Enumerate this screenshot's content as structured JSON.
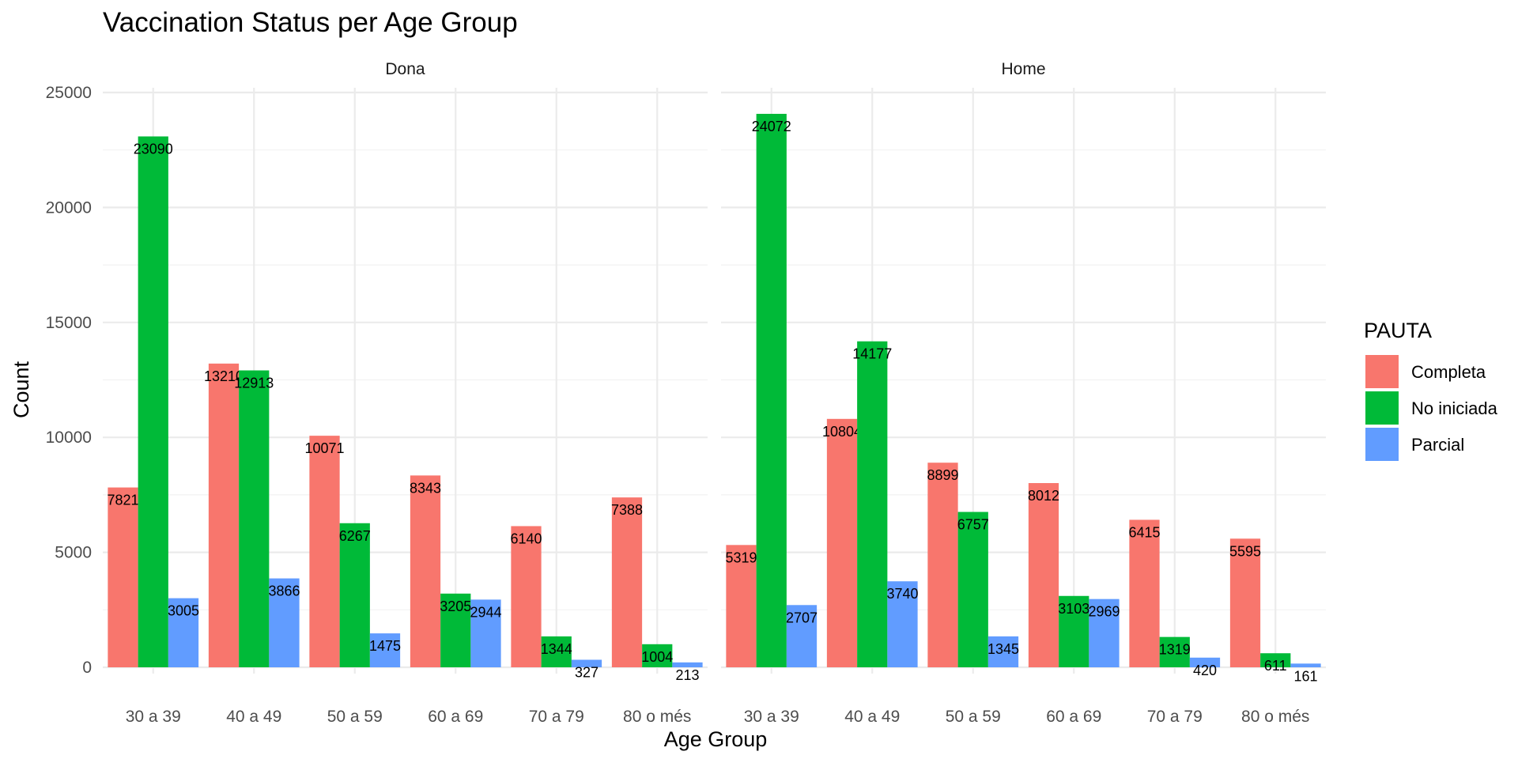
{
  "chart_data": {
    "type": "bar",
    "title": "Vaccination Status per Age Group",
    "xlabel": "Age Group",
    "ylabel": "Count",
    "ylim": [
      0,
      25000
    ],
    "yticks": [
      0,
      5000,
      10000,
      15000,
      20000,
      25000
    ],
    "grid": true,
    "legend": {
      "title": "PAUTA",
      "placement": "right"
    },
    "categories": [
      "30 a 39",
      "40 a 49",
      "50 a 59",
      "60 a 69",
      "70 a 79",
      "80 o més"
    ],
    "series_styles": [
      {
        "name": "Completa",
        "color": "#F8766D"
      },
      {
        "name": "No iniciada",
        "color": "#00BA38"
      },
      {
        "name": "Parcial",
        "color": "#619CFF"
      }
    ],
    "panels": [
      {
        "label": "Dona",
        "series": [
          {
            "name": "Completa",
            "values": [
              7821,
              13210,
              10071,
              8343,
              6140,
              7388
            ]
          },
          {
            "name": "No iniciada",
            "values": [
              23090,
              12913,
              6267,
              3205,
              1344,
              1004
            ]
          },
          {
            "name": "Parcial",
            "values": [
              3005,
              3866,
              1475,
              2944,
              327,
              213
            ]
          }
        ]
      },
      {
        "label": "Home",
        "series": [
          {
            "name": "Completa",
            "values": [
              5319,
              10804,
              8899,
              8012,
              6415,
              5595
            ]
          },
          {
            "name": "No iniciada",
            "values": [
              24072,
              14177,
              6757,
              3103,
              1319,
              611
            ]
          },
          {
            "name": "Parcial",
            "values": [
              2707,
              3740,
              1345,
              2969,
              420,
              161
            ]
          }
        ]
      }
    ]
  }
}
